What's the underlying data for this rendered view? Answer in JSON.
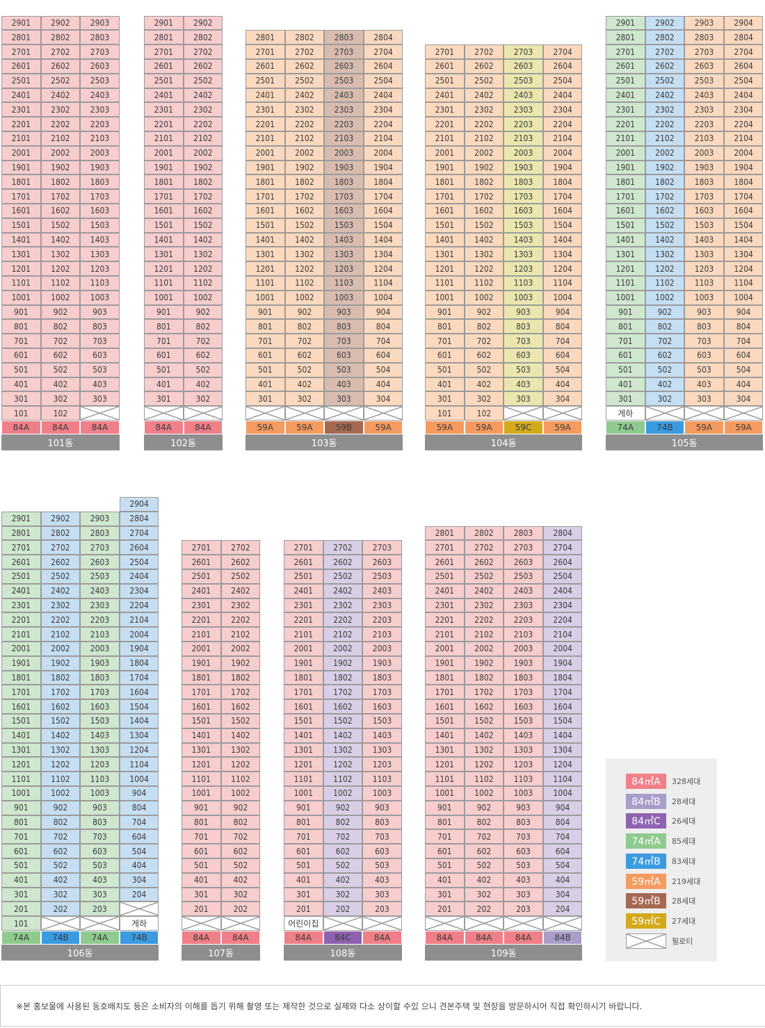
{
  "colors": {
    "84A": "#f7cdcd",
    "84B": "#d8cfe6",
    "84C": "#d8cfe6",
    "74A": "#cfe6cf",
    "74B": "#c6def2",
    "59A": "#fbd9bf",
    "59B": "#d8bcb0",
    "59C": "#ebe6ae"
  },
  "tag_colors": {
    "84A": "#ef7f88",
    "84B": "#a99dc9",
    "84C": "#8e62b0",
    "74A": "#8fca8f",
    "74B": "#3b9be0",
    "59A": "#f59b61",
    "59B": "#a56952",
    "59C": "#d3aa1c"
  },
  "buildings": [
    {
      "name": "101동",
      "top": 29,
      "columns": [
        {
          "unit": "01",
          "type": "84A",
          "low": [
            "101"
          ]
        },
        {
          "unit": "02",
          "type": "84A",
          "low": [
            "102"
          ]
        },
        {
          "unit": "03",
          "type": "84A",
          "low": [
            "PIL"
          ]
        }
      ]
    },
    {
      "name": "102동",
      "top": 29,
      "columns": [
        {
          "unit": "01",
          "type": "84A",
          "low": [
            "PIL"
          ]
        },
        {
          "unit": "02",
          "type": "84A",
          "low": [
            "PIL"
          ]
        }
      ]
    },
    {
      "name": "103동",
      "top": 28,
      "columns": [
        {
          "unit": "01",
          "type": "59A",
          "low": [
            "PIL"
          ]
        },
        {
          "unit": "02",
          "type": "59A",
          "low": [
            "PIL"
          ]
        },
        {
          "unit": "03",
          "type": "59B",
          "low": [
            "PIL"
          ]
        },
        {
          "unit": "04",
          "type": "59A",
          "low": [
            "PIL"
          ]
        }
      ]
    },
    {
      "name": "104동",
      "top": 27,
      "columns": [
        {
          "unit": "01",
          "type": "59A",
          "low": [
            "101"
          ]
        },
        {
          "unit": "02",
          "type": "59A",
          "low": [
            "102"
          ]
        },
        {
          "unit": "03",
          "type": "59C",
          "low": [
            "PIL"
          ]
        },
        {
          "unit": "04",
          "type": "59A",
          "low": [
            "PIL"
          ]
        }
      ]
    },
    {
      "name": "105동",
      "top": 29,
      "columns": [
        {
          "unit": "01",
          "type": "74A",
          "low": [
            "게하"
          ]
        },
        {
          "unit": "02",
          "type": "74B",
          "low": [
            "PIL"
          ]
        },
        {
          "unit": "03",
          "type": "59A",
          "low": [
            "PIL"
          ]
        },
        {
          "unit": "04",
          "type": "59A",
          "low": [
            "PIL"
          ]
        }
      ]
    },
    {
      "name": "106동",
      "top": 29,
      "columns": [
        {
          "unit": "01",
          "type": "74A",
          "low": [
            "101"
          ]
        },
        {
          "unit": "02",
          "type": "74B",
          "low": [
            "PIL"
          ]
        },
        {
          "unit": "03",
          "type": "74A",
          "low": [
            "PIL"
          ]
        },
        {
          "unit": "04",
          "type": "74B",
          "low": [
            "게하",
            "PIL"
          ]
        }
      ]
    },
    {
      "name": "107동",
      "top": 27,
      "columns": [
        {
          "unit": "01",
          "type": "84A",
          "low": [
            "PIL"
          ]
        },
        {
          "unit": "02",
          "type": "84A",
          "low": [
            "PIL"
          ]
        }
      ]
    },
    {
      "name": "108동",
      "top": 27,
      "columns": [
        {
          "unit": "01",
          "type": "84A",
          "low": [
            "어린이집"
          ]
        },
        {
          "unit": "02",
          "type": "84C",
          "low": [
            "PIL"
          ]
        },
        {
          "unit": "03",
          "type": "84A",
          "low": [
            "PIL"
          ]
        }
      ]
    },
    {
      "name": "109동",
      "top": 28,
      "columns": [
        {
          "unit": "01",
          "type": "84A",
          "low": [
            "PIL"
          ]
        },
        {
          "unit": "02",
          "type": "84A",
          "low": [
            "PIL"
          ]
        },
        {
          "unit": "03",
          "type": "84A",
          "low": [
            "PIL"
          ]
        },
        {
          "unit": "04",
          "type": "84B",
          "low": [
            "PIL"
          ]
        }
      ]
    }
  ],
  "legend": [
    {
      "type": "84A",
      "label": "84㎡A",
      "count": "328세대"
    },
    {
      "type": "84B",
      "label": "84㎡B",
      "count": "28세대"
    },
    {
      "type": "84C",
      "label": "84㎡C",
      "count": "26세대"
    },
    {
      "type": "74A",
      "label": "74㎡A",
      "count": "85세대"
    },
    {
      "type": "74B",
      "label": "74㎡B",
      "count": "83세대"
    },
    {
      "type": "59A",
      "label": "59㎡A",
      "count": "219세대"
    },
    {
      "type": "59B",
      "label": "59㎡B",
      "count": "28세대"
    },
    {
      "type": "59C",
      "label": "59㎡C",
      "count": "27세대"
    }
  ],
  "legend_piloti": "필로티",
  "footnote": "※본 홍보물에 사용된 동호배치도 등은 소비자의 이해를 돕기 위해 촬영 또는 제작한 것으로 실제와 다소 상이할 수있 으니 견본주택 및 현장을 방문하시어 직접 확인하시기 바랍니다."
}
